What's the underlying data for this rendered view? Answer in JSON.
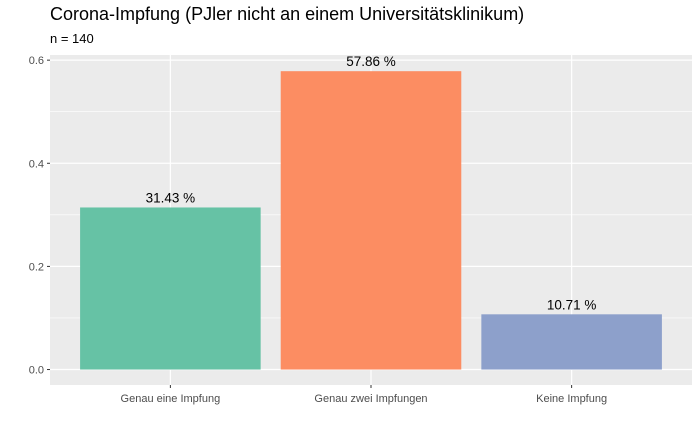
{
  "chart_data": {
    "type": "bar",
    "title": "Corona-Impfung (PJler nicht an einem Universitätsklinikum)",
    "subtitle": "n =  140",
    "xlabel": "",
    "ylabel": "",
    "categories": [
      "Genau eine Impfung",
      "Genau zwei Impfungen",
      "Keine Impfung"
    ],
    "values": [
      0.3143,
      0.5786,
      0.1071
    ],
    "data_labels": [
      "31.43 %",
      "57.86 %",
      "10.71 %"
    ],
    "colors": [
      "#66c2a5",
      "#fc8d62",
      "#8da0cb"
    ],
    "y_ticks": [
      0.0,
      0.2,
      0.4,
      0.6
    ],
    "y_tick_labels": [
      "0.0",
      "0.2",
      "0.4",
      "0.6"
    ],
    "ylim": [
      -0.03,
      0.61
    ],
    "grid": true,
    "legend": "none",
    "panel_background": "#ebebeb"
  }
}
